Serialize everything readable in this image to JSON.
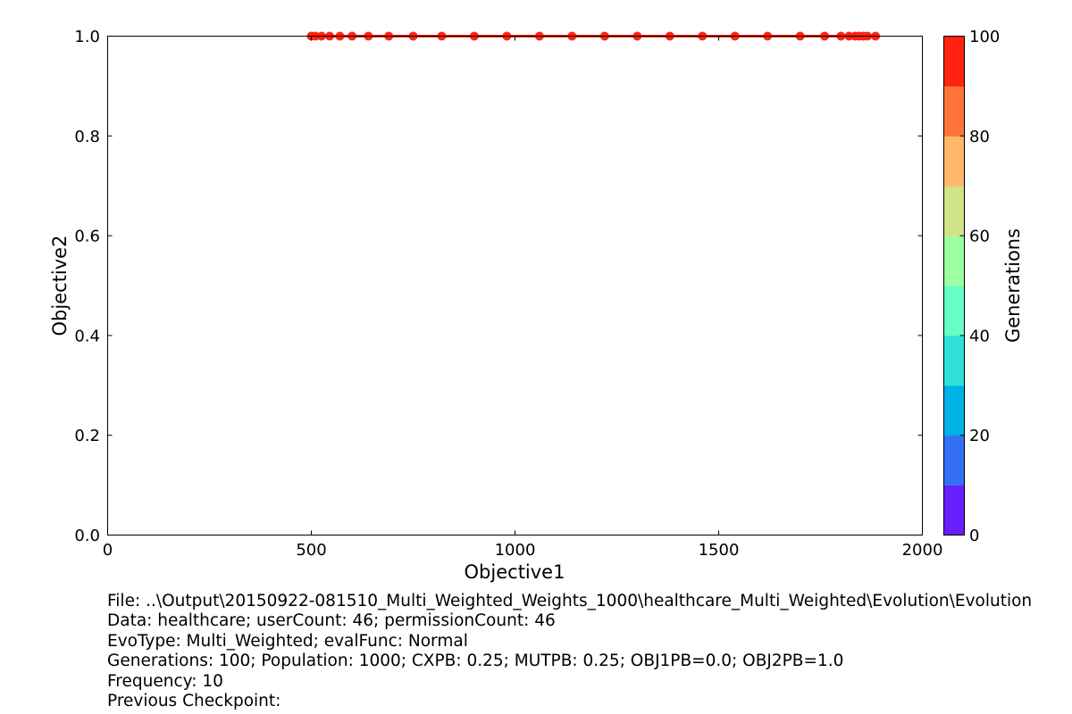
{
  "chart_data": {
    "type": "scatter",
    "xlabel": "Objective1",
    "ylabel": "Objective2",
    "xlim": [
      0,
      2000
    ],
    "ylim": [
      0.0,
      1.0
    ],
    "xticks": [
      "0",
      "500",
      "1000",
      "1500",
      "2000"
    ],
    "yticks": [
      "0.0",
      "0.2",
      "0.4",
      "0.6",
      "0.8",
      "1.0"
    ],
    "grid": false,
    "series": [
      {
        "generation": 100,
        "points": [
          [
            500,
            1.0
          ],
          [
            510,
            1.0
          ],
          [
            525,
            1.0
          ],
          [
            545,
            1.0
          ],
          [
            570,
            1.0
          ],
          [
            600,
            1.0
          ],
          [
            640,
            1.0
          ],
          [
            690,
            1.0
          ],
          [
            750,
            1.0
          ],
          [
            820,
            1.0
          ],
          [
            900,
            1.0
          ],
          [
            980,
            1.0
          ],
          [
            1060,
            1.0
          ],
          [
            1140,
            1.0
          ],
          [
            1220,
            1.0
          ],
          [
            1300,
            1.0
          ],
          [
            1380,
            1.0
          ],
          [
            1460,
            1.0
          ],
          [
            1540,
            1.0
          ],
          [
            1620,
            1.0
          ],
          [
            1700,
            1.0
          ],
          [
            1760,
            1.0
          ],
          [
            1800,
            1.0
          ],
          [
            1820,
            1.0
          ],
          [
            1835,
            1.0
          ],
          [
            1845,
            1.0
          ],
          [
            1855,
            1.0
          ],
          [
            1865,
            1.0
          ],
          [
            1885,
            1.0
          ]
        ]
      }
    ],
    "colorbar": {
      "label": "Generations",
      "range": [
        0,
        100
      ],
      "ticks": [
        "0",
        "20",
        "40",
        "60",
        "80",
        "100"
      ],
      "colors": [
        "#6a1ffc",
        "#3370f5",
        "#00b3e6",
        "#2fe0d8",
        "#66ffc4",
        "#9cffa0",
        "#d1e389",
        "#ffb869",
        "#ff7538",
        "#ff2311"
      ]
    }
  },
  "info": {
    "line1": "File: ..\\Output\\20150922-081510_Multi_Weighted_Weights_1000\\healthcare_Multi_Weighted\\Evolution\\Evolution",
    "line2": "Data: healthcare; userCount: 46; permissionCount: 46",
    "line3": "EvoType: Multi_Weighted; evalFunc: Normal",
    "line4": "Generations: 100; Population: 1000; CXPB: 0.25; MUTPB: 0.25; OBJ1PB=0.0; OBJ2PB=1.0",
    "line5": "Frequency: 10",
    "line6": "Previous Checkpoint:"
  }
}
